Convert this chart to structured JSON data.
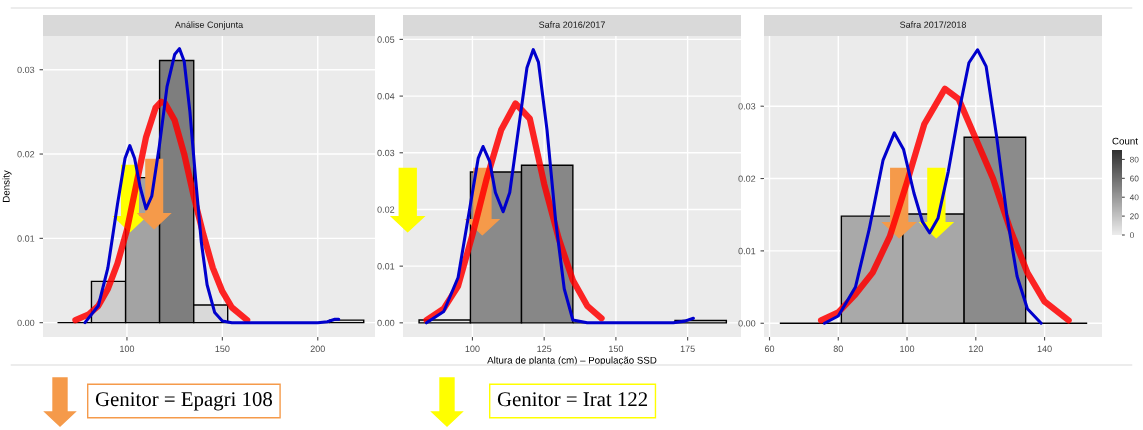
{
  "chart_data": [
    {
      "type": "histogram",
      "title": "Análise Conjunta",
      "ylabel": "Density",
      "bins": [
        63.6,
        81.4,
        99.3,
        117.1,
        135.0,
        152.8,
        170.6,
        188.5,
        206.3,
        224.1
      ],
      "values": [
        0,
        0.0049,
        0.0172,
        0.0311,
        0.0021,
        0,
        0,
        0,
        0.0003
      ],
      "colors": [
        "#000000",
        "#cdcdcd",
        "#a3a3a3",
        "#7e7e7e",
        "#d9d9d9",
        "#000000",
        "#000000",
        "#000000",
        "#e2e2e2"
      ],
      "series": [
        {
          "type": "line",
          "color": "#ff0000",
          "x": [
            73,
            80,
            85,
            90,
            95,
            100,
            105,
            110,
            115,
            118,
            120,
            125,
            130,
            135,
            140,
            145,
            150,
            155,
            163
          ],
          "values": [
            0.0003,
            0.001,
            0.002,
            0.004,
            0.007,
            0.011,
            0.0165,
            0.022,
            0.0255,
            0.0262,
            0.026,
            0.024,
            0.02,
            0.015,
            0.0105,
            0.0065,
            0.0037,
            0.0018,
            0.0003
          ]
        },
        {
          "type": "line",
          "color": "#0000cc",
          "x": [
            78,
            85,
            90,
            95,
            99,
            101.5,
            104,
            107,
            110,
            113,
            117,
            121,
            125,
            127.5,
            130,
            133,
            136,
            139,
            142,
            146,
            150,
            155,
            200,
            205,
            209,
            211
          ],
          "values": [
            0,
            0.002,
            0.0065,
            0.014,
            0.0195,
            0.021,
            0.0195,
            0.016,
            0.0135,
            0.015,
            0.021,
            0.028,
            0.0318,
            0.0325,
            0.031,
            0.025,
            0.017,
            0.0095,
            0.0045,
            0.0012,
            0.0002,
            0,
            0,
            0.0001,
            0.0004,
            0.0004
          ]
        }
      ],
      "xlim": [
        56,
        230
      ],
      "xticks": [
        100,
        150,
        200
      ],
      "ylim": [
        -0.0017,
        0.034
      ],
      "yticks": [
        {
          "value": 0,
          "label": "0.00"
        },
        {
          "value": 0.01,
          "label": "0.01"
        },
        {
          "value": 0.02,
          "label": "0.02"
        },
        {
          "value": 0.03,
          "label": "0.03"
        }
      ],
      "grid": true,
      "annotations": [
        "Genitor = Epagri 108",
        "Genitor = Irat 122"
      ]
    },
    {
      "type": "histogram",
      "title": "Safra 2016/2017",
      "xlabel": "Altura de planta (cm) – População SSD",
      "bins": [
        81.4,
        99.3,
        117.1,
        135.0,
        152.8,
        170.6,
        188.5
      ],
      "values": [
        0.0005,
        0.0266,
        0.0278,
        0,
        0,
        0.0004
      ],
      "colors": [
        "#e6e6e6",
        "#8a8a8a",
        "#878787",
        "#000000",
        "#000000",
        "#e4e4e4"
      ],
      "series": [
        {
          "type": "line",
          "color": "#ff0000",
          "x": [
            84,
            90,
            95,
            100,
            105,
            110,
            115,
            120,
            125,
            130,
            135,
            140,
            145
          ],
          "values": [
            0.0005,
            0.0025,
            0.0065,
            0.0155,
            0.0255,
            0.034,
            0.0387,
            0.036,
            0.0245,
            0.015,
            0.0075,
            0.003,
            0.0008
          ]
        },
        {
          "type": "line",
          "color": "#0000cc",
          "x": [
            84,
            90,
            95,
            99,
            102,
            103.7,
            106,
            108,
            110.7,
            113,
            116,
            119,
            121.2,
            123,
            126,
            129,
            132,
            135,
            140,
            170,
            174,
            177
          ],
          "values": [
            0,
            0.002,
            0.008,
            0.02,
            0.029,
            0.0311,
            0.0285,
            0.023,
            0.0196,
            0.023,
            0.034,
            0.045,
            0.0482,
            0.046,
            0.034,
            0.018,
            0.006,
            0.0005,
            0,
            0,
            0.0003,
            0.0008
          ]
        }
      ],
      "xlim": [
        75.8,
        193.6
      ],
      "xticks": [
        100,
        125,
        150,
        175
      ],
      "ylim": [
        -0.0025,
        0.0506
      ],
      "yticks": [
        {
          "value": 0,
          "label": "0.00"
        },
        {
          "value": 0.01,
          "label": "0.01"
        },
        {
          "value": 0.02,
          "label": "0.02"
        },
        {
          "value": 0.03,
          "label": "0.03"
        },
        {
          "value": 0.04,
          "label": "0.04"
        },
        {
          "value": 0.05,
          "label": "0.05"
        }
      ],
      "grid": true
    },
    {
      "type": "histogram",
      "title": "Safra 2017/2018",
      "bins": [
        63.0,
        80.9,
        98.8,
        116.6,
        134.5,
        152.4
      ],
      "values": [
        0,
        0.0148,
        0.0151,
        0.0257,
        0
      ],
      "colors": [
        "#000000",
        "#a9a9a9",
        "#a7a7a7",
        "#8b8b8b",
        "#000000"
      ],
      "series": [
        {
          "type": "line",
          "color": "#ff0000",
          "x": [
            75,
            80,
            85,
            90,
            95,
            100,
            105,
            111,
            115,
            120,
            125,
            130,
            135,
            140,
            147
          ],
          "values": [
            0.0004,
            0.0015,
            0.004,
            0.007,
            0.012,
            0.0195,
            0.0275,
            0.0324,
            0.031,
            0.0255,
            0.02,
            0.013,
            0.007,
            0.003,
            0.0004
          ]
        },
        {
          "type": "line",
          "color": "#0000cc",
          "x": [
            76,
            80,
            85,
            89,
            93,
            96.3,
            99,
            102,
            104.5,
            106.6,
            109,
            112,
            115,
            118,
            120.5,
            123,
            126,
            129,
            132,
            135,
            139
          ],
          "values": [
            0,
            0.001,
            0.005,
            0.013,
            0.0225,
            0.0263,
            0.024,
            0.018,
            0.014,
            0.0125,
            0.0145,
            0.021,
            0.029,
            0.036,
            0.0378,
            0.0355,
            0.026,
            0.015,
            0.0065,
            0.002,
            0
          ]
        }
      ],
      "xlim": [
        58.4,
        156.7
      ],
      "xticks": [
        60,
        80,
        100,
        120,
        140
      ],
      "ylim": [
        -0.0019,
        0.0397
      ],
      "yticks": [
        {
          "value": 0,
          "label": "0.00"
        },
        {
          "value": 0.01,
          "label": "0.01"
        },
        {
          "value": 0.02,
          "label": "0.02"
        },
        {
          "value": 0.03,
          "label": "0.03"
        }
      ],
      "grid": true,
      "clabel": "Count",
      "clim": [
        0,
        90
      ],
      "cticks": [
        0,
        20,
        40,
        60,
        80
      ]
    }
  ]
}
